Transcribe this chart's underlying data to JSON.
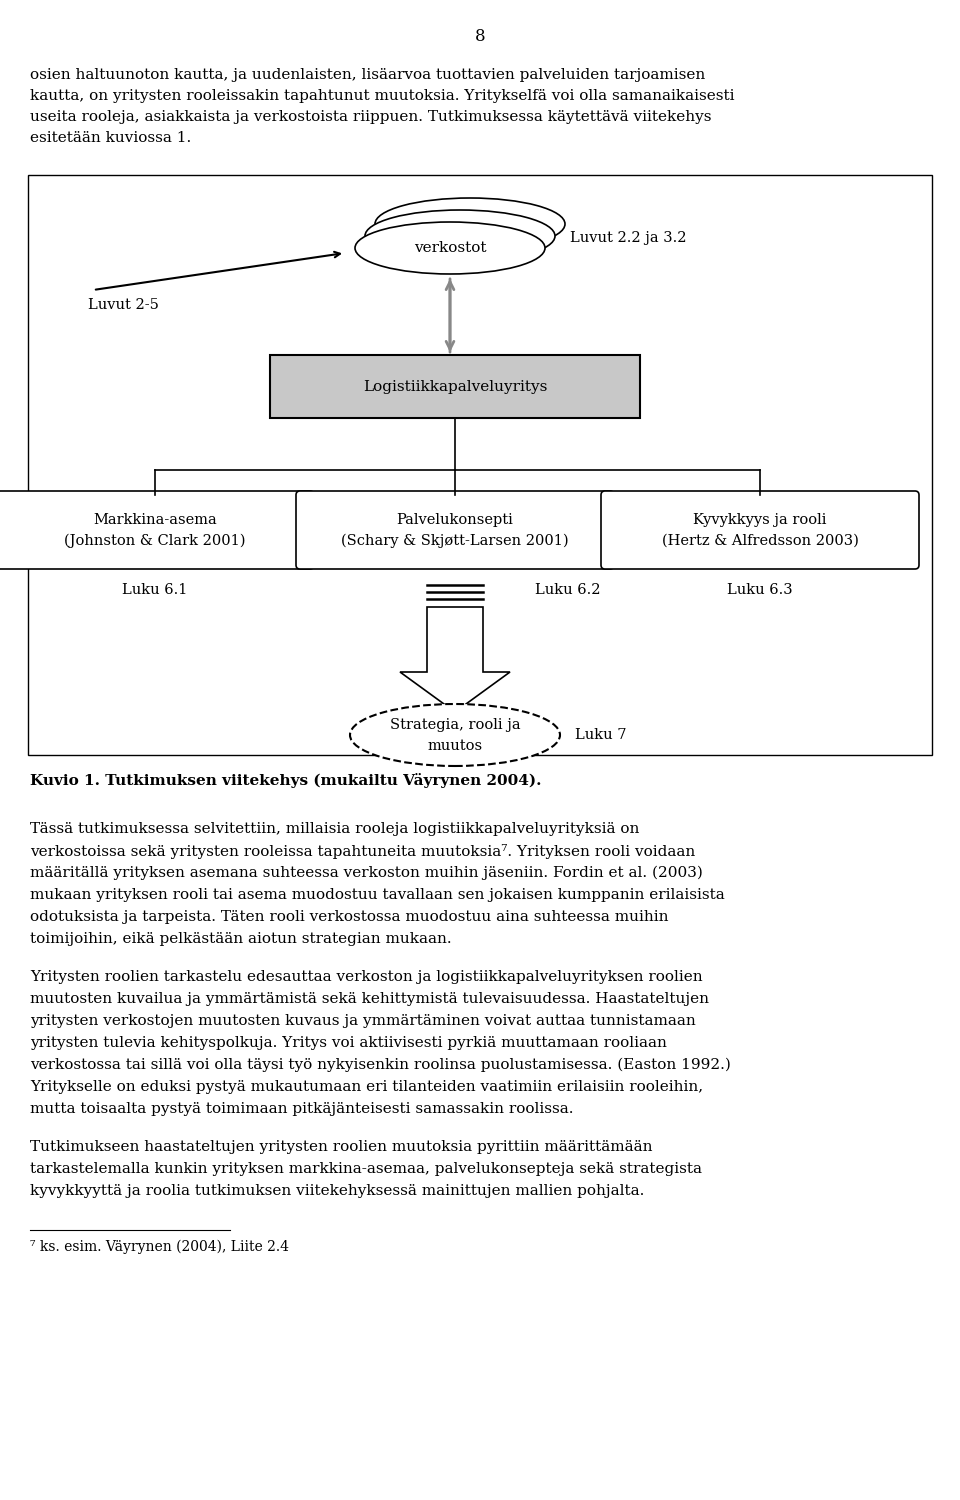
{
  "page_number": "8",
  "intro_text_lines": [
    "osien haltuunoton kautta, ja uudenlaisten, lisäarvoa tuottavien palveluiden tarjoamisen",
    "kautta, on yritysten rooleissakin tapahtunut muutoksia. Yritykselfä voi olla samanaikaisesti",
    "useita rooleja, asiakkaista ja verkostoista riippuen. Tutkimuksessa käytettävä viitekehys",
    "esitetään kuviossa 1."
  ],
  "diagram_labels": {
    "verkostot": "verkostot",
    "luvut_25": "Luvut 2-5",
    "luvut_22_32": "Luvut 2.2 ja 3.2",
    "logistiikka": "Logistiikkapalveluyritys",
    "box1_line1": "Markkina-asema",
    "box1_line2": "(Johnston & Clark 2001)",
    "box2_line1": "Palvelukonsepti",
    "box2_line2": "(Schary & Skjøtt-Larsen 2001)",
    "box3_line1": "Kyvykkyys ja rooli",
    "box3_line2": "(Hertz & Alfredsson 2003)",
    "luku_61": "Luku 6.1",
    "luku_62": "Luku 6.2",
    "luku_63": "Luku 6.3",
    "strategia_line1": "Strategia, rooli ja",
    "strategia_line2": "muutos",
    "luku_7": "Luku 7"
  },
  "caption": "Kuvio 1. Tutkimuksen viitekehys (mukailtu Väyrynen 2004).",
  "body_p1_lines": [
    "Tässä tutkimuksessa selvitettiin, millaisia rooleja logistiikkapalveluyrityksiä on",
    "verkostoissa sekä yritysten rooleissa tapahtuneita muutoksia⁷. Yrityksen rooli voidaan",
    "määritällä yrityksen asemana suhteessa verkoston muihin jäseniin. Fordin et al. (2003)",
    "mukaan yrityksen rooli tai asema muodostuu tavallaan sen jokaisen kumppanin erilaisista",
    "odotuksista ja tarpeista. Täten rooli verkostossa muodostuu aina suhteessa muihin",
    "toimijoihin, eikä pelkästään aiotun strategian mukaan."
  ],
  "body_p2_lines": [
    "Yritysten roolien tarkastelu edesauttaa verkoston ja logistiikkapalveluyrityksen roolien",
    "muutosten kuvailua ja ymmärtämistä sekä kehittymistä tulevaisuudessa. Haastateltujen",
    "yritysten verkostojen muutosten kuvaus ja ymmärtäminen voivat auttaa tunnistamaan",
    "yritysten tulevia kehityspolkuja. Yritys voi aktiivisesti pyrkiä muuttamaan rooliaan",
    "verkostossa tai sillä voi olla täysi työ nykyisenkin roolinsa puolustamisessa. (Easton 1992.)",
    "Yritykselle on eduksi pystyä mukautumaan eri tilanteiden vaatimiin erilaisiin rooleihin,",
    "mutta toisaalta pystyä toimimaan pitkäjänteisesti samassakin roolissa."
  ],
  "body_p3_lines": [
    "Tutkimukseen haastateltujen yritysten roolien muutoksia pyrittiin määrittämään",
    "tarkastelemalla kunkin yrityksen markkina-asemaa, palvelukonsepteja sekä strategista",
    "kyvykkyyttä ja roolia tutkimuksen viitekehyksessä mainittujen mallien pohjalta."
  ],
  "footnote": "⁷ ks. esim. Väyrynen (2004), Liite 2.4"
}
